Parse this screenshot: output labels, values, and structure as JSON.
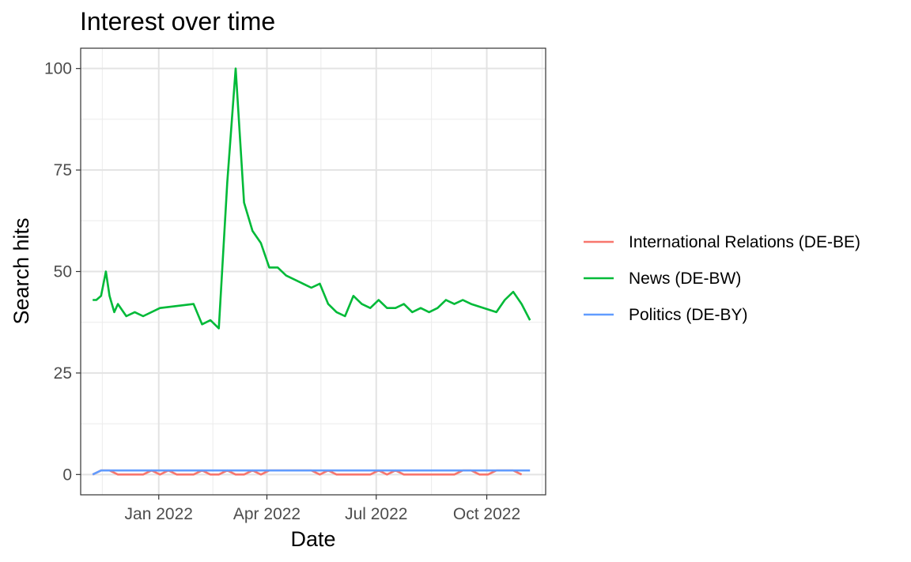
{
  "chart_data": {
    "type": "line",
    "title": "Interest over time",
    "xlabel": "Date",
    "ylabel": "Search hits",
    "x_range": [
      "2021-10-28",
      "2022-11-19"
    ],
    "ylim": [
      -5,
      105
    ],
    "y_ticks": [
      0,
      25,
      50,
      75,
      100
    ],
    "y_tick_labels": [
      "0",
      "25",
      "50",
      "75",
      "100"
    ],
    "x_ticks": [
      "2022-01-01",
      "2022-04-01",
      "2022-07-01",
      "2022-10-01"
    ],
    "x_tick_labels": [
      "Jan 2022",
      "Apr 2022",
      "Jul 2022",
      "Oct 2022"
    ],
    "x_minor_ticks": [
      "2021-11-15",
      "2022-02-15",
      "2022-05-16",
      "2022-08-16",
      "2022-11-16"
    ],
    "grid": true,
    "legend_position": "right",
    "series": [
      {
        "name": "International Relations (DE-BE)",
        "color": "#F8766D",
        "x": [
          "2021-11-07",
          "2021-11-14",
          "2021-11-21",
          "2021-11-28",
          "2021-12-05",
          "2021-12-12",
          "2021-12-19",
          "2021-12-26",
          "2022-01-02",
          "2022-01-09",
          "2022-01-16",
          "2022-01-23",
          "2022-01-30",
          "2022-02-06",
          "2022-02-13",
          "2022-02-20",
          "2022-02-27",
          "2022-03-06",
          "2022-03-13",
          "2022-03-20",
          "2022-03-27",
          "2022-04-03",
          "2022-04-10",
          "2022-04-17",
          "2022-04-24",
          "2022-05-01",
          "2022-05-08",
          "2022-05-15",
          "2022-05-22",
          "2022-05-29",
          "2022-06-05",
          "2022-06-12",
          "2022-06-19",
          "2022-06-26",
          "2022-07-03",
          "2022-07-10",
          "2022-07-17",
          "2022-07-24",
          "2022-07-31",
          "2022-08-07",
          "2022-08-14",
          "2022-08-21",
          "2022-08-28",
          "2022-09-04",
          "2022-09-11",
          "2022-09-18",
          "2022-09-25",
          "2022-10-02",
          "2022-10-09",
          "2022-10-16",
          "2022-10-23",
          "2022-10-30"
        ],
        "values": [
          0,
          1,
          1,
          0,
          0,
          0,
          0,
          1,
          0,
          1,
          0,
          0,
          0,
          1,
          0,
          0,
          1,
          0,
          0,
          1,
          0,
          1,
          1,
          1,
          1,
          1,
          1,
          0,
          1,
          0,
          0,
          0,
          0,
          0,
          1,
          0,
          1,
          0,
          0,
          0,
          0,
          0,
          0,
          0,
          1,
          1,
          0,
          0,
          1,
          1,
          1,
          0
        ]
      },
      {
        "name": "News (DE-BW)",
        "color": "#00BA38",
        "x": [
          "2021-11-07",
          "2021-11-10",
          "2021-11-14",
          "2021-11-18",
          "2021-11-21",
          "2021-11-25",
          "2021-11-28",
          "2021-12-05",
          "2021-12-12",
          "2021-12-19",
          "2022-01-02",
          "2022-01-30",
          "2022-02-06",
          "2022-02-13",
          "2022-02-20",
          "2022-02-27",
          "2022-03-06",
          "2022-03-13",
          "2022-03-20",
          "2022-03-27",
          "2022-04-03",
          "2022-04-10",
          "2022-04-17",
          "2022-05-08",
          "2022-05-15",
          "2022-05-22",
          "2022-05-29",
          "2022-06-05",
          "2022-06-12",
          "2022-06-19",
          "2022-06-26",
          "2022-07-03",
          "2022-07-10",
          "2022-07-17",
          "2022-07-24",
          "2022-07-31",
          "2022-08-07",
          "2022-08-14",
          "2022-08-21",
          "2022-08-28",
          "2022-09-04",
          "2022-09-11",
          "2022-09-18",
          "2022-10-09",
          "2022-10-16",
          "2022-10-23",
          "2022-10-30",
          "2022-11-06"
        ],
        "values": [
          43,
          43,
          44,
          50,
          44,
          40,
          42,
          39,
          40,
          39,
          41,
          42,
          37,
          38,
          36,
          72,
          100,
          67,
          60,
          57,
          51,
          51,
          49,
          46,
          47,
          42,
          40,
          39,
          44,
          42,
          41,
          43,
          41,
          41,
          42,
          40,
          41,
          40,
          41,
          43,
          42,
          43,
          42,
          40,
          43,
          45,
          42,
          38
        ]
      },
      {
        "name": "Politics (DE-BY)",
        "color": "#619CFF",
        "x": [
          "2021-11-07",
          "2021-11-14",
          "2022-11-06"
        ],
        "values": [
          0,
          1,
          1
        ]
      }
    ]
  }
}
